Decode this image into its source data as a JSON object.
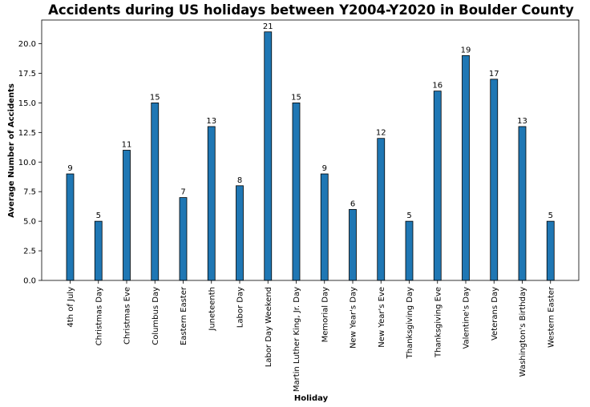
{
  "chart_data": {
    "type": "bar",
    "title": "Accidents during US holidays between Y2004-Y2020 in Boulder County",
    "xlabel": "Holiday",
    "ylabel": "Average Number of Accidents",
    "categories": [
      "4th of July",
      "Christmas Day",
      "Christmas Eve",
      "Columbus Day",
      "Eastern Easter",
      "Juneteenth",
      "Labor Day",
      "Labor Day Weekend",
      "Martin Luther King, Jr. Day",
      "Memorial Day",
      "New Year's Day",
      "New Year's Eve",
      "Thanksgiving Day",
      "Thanksgiving Eve",
      "Valentine's Day",
      "Veterans Day",
      "Washington's Birthday",
      "Western Easter"
    ],
    "values": [
      9,
      5,
      11,
      15,
      7,
      13,
      8,
      21,
      15,
      9,
      6,
      12,
      5,
      16,
      19,
      17,
      13,
      5
    ],
    "ylim": [
      0,
      22
    ],
    "yticks": [
      "0.0",
      "2.5",
      "5.0",
      "7.5",
      "10.0",
      "12.5",
      "15.0",
      "17.5",
      "20.0"
    ],
    "grid": false,
    "legend": "none",
    "bar_color": "#1f77b4",
    "edge_color": "#000000"
  }
}
